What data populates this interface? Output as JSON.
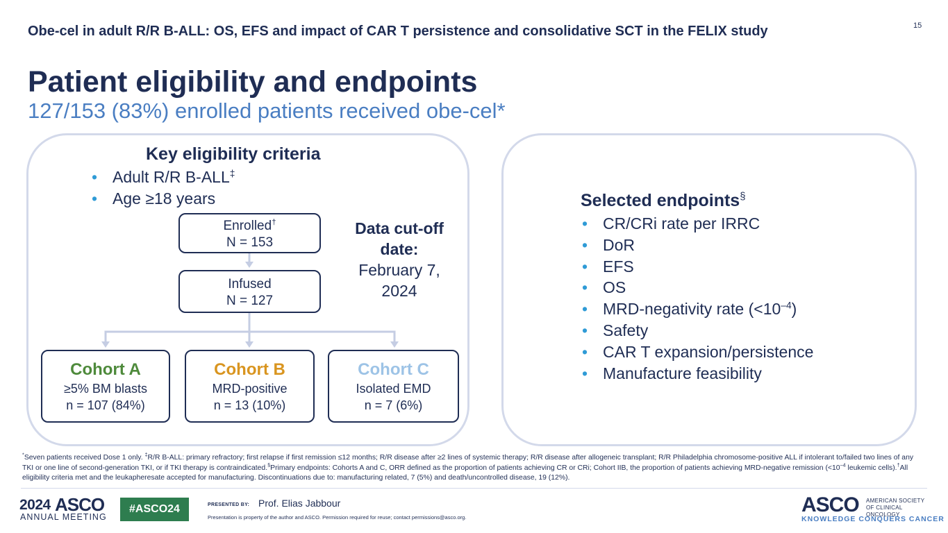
{
  "header": {
    "title": "Obe-cel in adult R/R B-ALL: OS, EFS and impact of CAR T persistence and consolidative SCT in the FELIX study",
    "page_number": "15"
  },
  "slide": {
    "title": "Patient eligibility and endpoints",
    "subtitle": "127/153 (83%) enrolled patients received obe-cel*"
  },
  "eligibility": {
    "heading": "Key eligibility criteria",
    "items": [
      {
        "text": "Adult R/R B-ALL",
        "sup": "‡"
      },
      {
        "text": "Age ≥18 years",
        "sup": ""
      }
    ]
  },
  "flow": {
    "enrolled": {
      "label": "Enrolled",
      "label_sup": "†",
      "n": "N = 153"
    },
    "infused": {
      "label": "Infused",
      "n": "N = 127"
    }
  },
  "cutoff": {
    "heading": "Data cut-off date:",
    "date": "February 7, 2024"
  },
  "cohorts": [
    {
      "name": "Cohort A",
      "criterion": "≥5% BM blasts",
      "count": "n = 107 (84%)",
      "color": "#4e8a3b"
    },
    {
      "name": "Cohort B",
      "criterion": "MRD-positive",
      "count": "n = 13 (10%)",
      "color": "#d99520"
    },
    {
      "name": "Cohort C",
      "criterion": "Isolated EMD",
      "count": "n = 7 (6%)",
      "color": "#9dc3e6"
    }
  ],
  "endpoints": {
    "heading": "Selected endpoints",
    "heading_sup": "§",
    "items": [
      {
        "text": "CR/CRi rate per IRRC"
      },
      {
        "text": "DoR"
      },
      {
        "text": "EFS"
      },
      {
        "text": "OS"
      },
      {
        "text": "MRD-negativity rate (<10",
        "sup": "–4",
        "tail": ")"
      },
      {
        "text": "Safety"
      },
      {
        "text": "CAR T expansion/persistence"
      },
      {
        "text": "Manufacture feasibility"
      }
    ]
  },
  "footnote": {
    "mark1": "*",
    "part1": "Seven patients received Dose 1 only. ",
    "mark2": "‡",
    "part2": "R/R B-ALL: primary refractory; first relapse if first remission ≤12 months; R/R disease after ≥2 lines of systemic therapy; R/R disease after allogeneic transplant; R/R Philadelphia chromosome-positive ALL if intolerant to/failed two lines of any TKI or one line of second-generation TKI, or if TKI therapy is contraindicated.",
    "mark3": "§",
    "part3": "Primary endpoints: Cohorts A and C, ORR defined as the proportion of patients achieving CR or CRi; Cohort IIB, the proportion of patients achieving MRD-negative remission (<10",
    "exp": "–4",
    "part4": " leukemic cells).",
    "mark4": "†",
    "part5": "All eligibility criteria met and the leukapheresate accepted for manufacturing. Discontinuations due to: manufacturing related, 7 (5%) and death/uncontrolled disease, 19 (12%)."
  },
  "footer": {
    "meeting_year": "2024",
    "meeting_brand": "ASCO",
    "meeting_label": "ANNUAL MEETING",
    "hashtag": "#ASCO24",
    "presented_by_label": "PRESENTED BY:",
    "presenter": "Prof. Elias Jabbour",
    "disclaimer": "Presentation is property of the author and ASCO. Permission required for reuse; contact permissions@asco.org.",
    "org_brand": "ASCO",
    "org_name": "AMERICAN SOCIETY OF CLINICAL ONCOLOGY",
    "org_tagline": "KNOWLEDGE CONQUERS CANCER"
  },
  "colors": {
    "navy": "#1f2d54",
    "accent_blue": "#4a7ec2",
    "bullet": "#2f9bd6",
    "connector": "#c5cde3",
    "panel_border": "#d3d9ea",
    "hashtag_bg": "#2e7d4f"
  }
}
